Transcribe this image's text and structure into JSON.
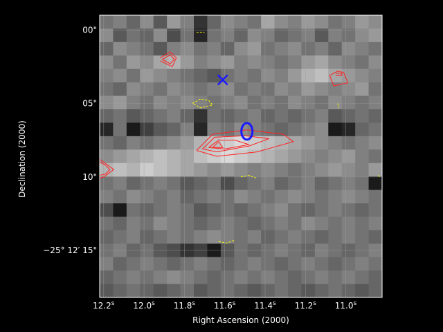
{
  "chart_data": {
    "type": "heatmap",
    "xlabel": "Right Ascension (2000)",
    "ylabel": "Declination (2000)",
    "x_ticks": [
      {
        "value": 12.2,
        "label": "12.2",
        "sup": "s"
      },
      {
        "value": 12.0,
        "label": "12.0",
        "sup": "s"
      },
      {
        "value": 11.8,
        "label": "11.8",
        "sup": "s"
      },
      {
        "value": 11.6,
        "label": "11.6",
        "sup": "s"
      },
      {
        "value": 11.4,
        "label": "11.4",
        "sup": "s"
      },
      {
        "value": 11.2,
        "label": "11.2",
        "sup": "s"
      },
      {
        "value": 11.0,
        "label": "11.0",
        "sup": "s"
      }
    ],
    "y_ticks": [
      {
        "value": 0,
        "label": "00\""
      },
      {
        "value": 5,
        "label": "05\""
      },
      {
        "value": 10,
        "label": "10\""
      },
      {
        "value": 15,
        "label": "−25° 12′ 15\""
      }
    ],
    "xlim": [
      12.22,
      10.82
    ],
    "ylim": [
      -1.0,
      18.2
    ],
    "grid": true,
    "colors": {
      "background": "#000000",
      "positive_contours": "#ff2020",
      "negative_contours": "#ffff00",
      "markers": "#1a1aff",
      "grid": "#a0a0a0"
    },
    "image_cols": 21,
    "image_rows": 21,
    "image_values": [
      [
        0.45,
        0.5,
        0.4,
        0.55,
        0.35,
        0.6,
        0.5,
        0.2,
        0.4,
        0.55,
        0.5,
        0.45,
        0.65,
        0.55,
        0.5,
        0.6,
        0.55,
        0.45,
        0.5,
        0.6,
        0.55
      ],
      [
        0.55,
        0.35,
        0.45,
        0.4,
        0.55,
        0.3,
        0.45,
        0.15,
        0.45,
        0.5,
        0.4,
        0.55,
        0.5,
        0.4,
        0.45,
        0.5,
        0.35,
        0.5,
        0.45,
        0.55,
        0.6
      ],
      [
        0.4,
        0.55,
        0.5,
        0.45,
        0.35,
        0.5,
        0.55,
        0.45,
        0.5,
        0.4,
        0.55,
        0.6,
        0.45,
        0.5,
        0.55,
        0.45,
        0.5,
        0.4,
        0.55,
        0.5,
        0.45
      ],
      [
        0.55,
        0.45,
        0.6,
        0.55,
        0.65,
        0.7,
        0.6,
        0.5,
        0.55,
        0.6,
        0.5,
        0.55,
        0.5,
        0.45,
        0.5,
        0.6,
        0.65,
        0.55,
        0.5,
        0.45,
        0.55
      ],
      [
        0.5,
        0.55,
        0.45,
        0.6,
        0.55,
        0.5,
        0.45,
        0.4,
        0.35,
        0.45,
        0.5,
        0.45,
        0.55,
        0.5,
        0.6,
        0.7,
        0.75,
        0.65,
        0.6,
        0.55,
        0.5
      ],
      [
        0.45,
        0.4,
        0.55,
        0.5,
        0.45,
        0.55,
        0.5,
        0.45,
        0.5,
        0.55,
        0.45,
        0.5,
        0.45,
        0.55,
        0.5,
        0.6,
        0.55,
        0.5,
        0.55,
        0.6,
        0.45
      ],
      [
        0.55,
        0.6,
        0.5,
        0.45,
        0.55,
        0.5,
        0.55,
        0.5,
        0.45,
        0.5,
        0.55,
        0.45,
        0.5,
        0.45,
        0.55,
        0.5,
        0.45,
        0.55,
        0.5,
        0.45,
        0.5
      ],
      [
        0.4,
        0.45,
        0.35,
        0.4,
        0.45,
        0.5,
        0.4,
        0.2,
        0.45,
        0.4,
        0.45,
        0.5,
        0.4,
        0.45,
        0.4,
        0.45,
        0.5,
        0.35,
        0.4,
        0.45,
        0.4
      ],
      [
        0.15,
        0.45,
        0.1,
        0.25,
        0.35,
        0.4,
        0.5,
        0.15,
        0.5,
        0.45,
        0.55,
        0.5,
        0.45,
        0.4,
        0.45,
        0.5,
        0.55,
        0.1,
        0.15,
        0.4,
        0.45
      ],
      [
        0.45,
        0.4,
        0.5,
        0.45,
        0.5,
        0.55,
        0.6,
        0.7,
        0.75,
        0.8,
        0.85,
        0.8,
        0.75,
        0.7,
        0.65,
        0.6,
        0.55,
        0.5,
        0.45,
        0.5,
        0.55
      ],
      [
        0.55,
        0.6,
        0.65,
        0.7,
        0.75,
        0.7,
        0.65,
        0.75,
        0.8,
        0.85,
        0.8,
        0.75,
        0.7,
        0.65,
        0.6,
        0.55,
        0.5,
        0.55,
        0.6,
        0.5,
        0.45
      ],
      [
        0.7,
        0.75,
        0.7,
        0.8,
        0.75,
        0.7,
        0.65,
        0.6,
        0.55,
        0.6,
        0.55,
        0.5,
        0.55,
        0.5,
        0.45,
        0.5,
        0.55,
        0.6,
        0.55,
        0.5,
        0.6
      ],
      [
        0.45,
        0.5,
        0.4,
        0.45,
        0.5,
        0.45,
        0.35,
        0.4,
        0.45,
        0.3,
        0.4,
        0.45,
        0.5,
        0.4,
        0.45,
        0.5,
        0.4,
        0.45,
        0.5,
        0.45,
        0.1
      ],
      [
        0.5,
        0.45,
        0.55,
        0.5,
        0.45,
        0.5,
        0.4,
        0.45,
        0.5,
        0.45,
        0.55,
        0.5,
        0.45,
        0.5,
        0.55,
        0.5,
        0.45,
        0.5,
        0.55,
        0.5,
        0.45
      ],
      [
        0.3,
        0.1,
        0.45,
        0.4,
        0.45,
        0.5,
        0.45,
        0.35,
        0.4,
        0.45,
        0.4,
        0.45,
        0.5,
        0.55,
        0.45,
        0.4,
        0.45,
        0.5,
        0.45,
        0.4,
        0.45
      ],
      [
        0.45,
        0.4,
        0.5,
        0.45,
        0.55,
        0.5,
        0.45,
        0.4,
        0.45,
        0.5,
        0.45,
        0.4,
        0.45,
        0.5,
        0.45,
        0.55,
        0.5,
        0.45,
        0.5,
        0.45,
        0.5
      ],
      [
        0.4,
        0.45,
        0.5,
        0.4,
        0.45,
        0.5,
        0.45,
        0.5,
        0.55,
        0.5,
        0.45,
        0.5,
        0.4,
        0.45,
        0.5,
        0.45,
        0.4,
        0.45,
        0.5,
        0.45,
        0.4
      ],
      [
        0.45,
        0.5,
        0.4,
        0.45,
        0.35,
        0.3,
        0.2,
        0.25,
        0.1,
        0.35,
        0.45,
        0.4,
        0.45,
        0.5,
        0.45,
        0.4,
        0.5,
        0.45,
        0.4,
        0.45,
        0.5
      ],
      [
        0.5,
        0.4,
        0.45,
        0.5,
        0.45,
        0.4,
        0.45,
        0.5,
        0.45,
        0.4,
        0.45,
        0.5,
        0.45,
        0.4,
        0.45,
        0.5,
        0.45,
        0.4,
        0.45,
        0.5,
        0.45
      ],
      [
        0.4,
        0.45,
        0.5,
        0.45,
        0.5,
        0.55,
        0.5,
        0.45,
        0.4,
        0.45,
        0.5,
        0.45,
        0.5,
        0.45,
        0.4,
        0.45,
        0.5,
        0.45,
        0.5,
        0.45,
        0.4
      ],
      [
        0.35,
        0.4,
        0.45,
        0.4,
        0.35,
        0.4,
        0.45,
        0.35,
        0.4,
        0.45,
        0.4,
        0.35,
        0.4,
        0.45,
        0.4,
        0.35,
        0.4,
        0.45,
        0.4,
        0.35,
        0.4
      ]
    ],
    "markers": [
      {
        "name": "X",
        "symbol": "x",
        "x": 11.61,
        "y": 3.4,
        "color": "#1a1aff"
      },
      {
        "name": "O",
        "symbol": "o",
        "x": 11.49,
        "y": 6.9,
        "color": "#1a1aff"
      }
    ],
    "contours": {
      "positive": [
        {
          "x": [
            11.92,
            11.87,
            11.84,
            11.86,
            11.92
          ],
          "y": [
            1.9,
            1.5,
            1.9,
            2.5,
            2.1
          ]
        },
        {
          "x": [
            11.91,
            11.87,
            11.85,
            11.87,
            11.91
          ],
          "y": [
            2.0,
            1.7,
            2.0,
            2.3,
            2.0
          ]
        },
        {
          "x": [
            11.08,
            11.04,
            11.01,
            10.99,
            11.06,
            11.08
          ],
          "y": [
            3.1,
            2.8,
            2.9,
            3.6,
            3.8,
            3.1
          ]
        },
        {
          "x": [
            11.05,
            11.02,
            11.02,
            11.05
          ],
          "y": [
            2.95,
            2.95,
            3.1,
            3.1
          ]
        },
        {
          "x": [
            11.74,
            11.66,
            11.49,
            11.31,
            11.26,
            11.44,
            11.64,
            11.74
          ],
          "y": [
            8.2,
            7.1,
            6.8,
            7.1,
            7.6,
            8.3,
            8.6,
            8.2
          ]
        },
        {
          "x": [
            11.71,
            11.65,
            11.5,
            11.38,
            11.48,
            11.64,
            11.71
          ],
          "y": [
            8.1,
            7.3,
            7.2,
            7.4,
            7.9,
            8.3,
            8.1
          ]
        },
        {
          "x": [
            11.68,
            11.63,
            11.55,
            11.48,
            11.6,
            11.68
          ],
          "y": [
            8.0,
            7.5,
            7.5,
            7.8,
            8.1,
            8.0
          ]
        },
        {
          "x": [
            11.66,
            11.63,
            11.61,
            11.66
          ],
          "y": [
            8.0,
            7.6,
            8.0,
            8.0
          ]
        },
        {
          "x": [
            12.22,
            12.2,
            12.15,
            12.2,
            12.22
          ],
          "y": [
            8.8,
            9.0,
            9.5,
            10.0,
            10.1
          ]
        },
        {
          "x": [
            12.22,
            12.19,
            12.17,
            12.19,
            12.22
          ],
          "y": [
            9.0,
            9.2,
            9.5,
            9.8,
            9.9
          ]
        }
      ],
      "negative": [
        {
          "x": [
            11.74,
            11.72,
            11.7
          ],
          "y": [
            0.2,
            0.15,
            0.2
          ]
        },
        {
          "x": [
            11.76,
            11.72,
            11.68,
            11.66,
            11.72,
            11.76
          ],
          "y": [
            5.0,
            4.7,
            4.8,
            5.1,
            5.3,
            5.0
          ]
        },
        {
          "x": [
            11.04,
            11.035
          ],
          "y": [
            5.0,
            5.3
          ]
        },
        {
          "x": [
            11.52,
            11.48,
            11.44
          ],
          "y": [
            10.0,
            9.9,
            10.1
          ]
        },
        {
          "x": [
            10.84,
            10.83
          ],
          "y": [
            9.9,
            10.0
          ]
        },
        {
          "x": [
            11.63,
            11.59,
            11.55
          ],
          "y": [
            14.4,
            14.5,
            14.3
          ]
        }
      ]
    }
  }
}
